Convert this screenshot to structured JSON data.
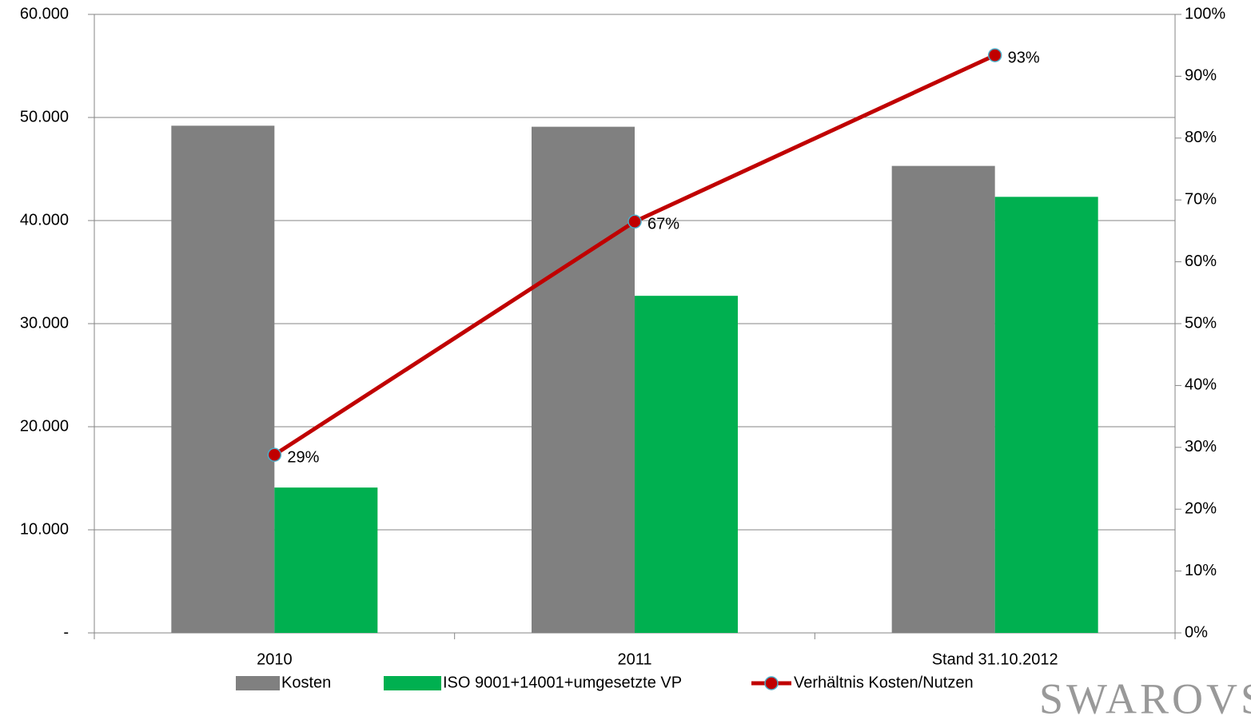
{
  "chart_data": {
    "type": "bar-line",
    "categories": [
      "2010",
      "2011",
      "Stand 31.10.2012"
    ],
    "series": [
      {
        "name": "Kosten",
        "color": "#808080",
        "values": [
          49200,
          49100,
          45300
        ]
      },
      {
        "name": "ISO 9001+14001+umgesetzte VP",
        "color": "#00b050",
        "values": [
          14100,
          32700,
          42300
        ]
      },
      {
        "name": "Verhältnis Kosten/Nutzen",
        "color": "#c00000",
        "axis": "y2",
        "values": [
          28.8,
          66.5,
          93.4
        ],
        "value_labels": [
          "29%",
          "67%",
          "93%"
        ]
      }
    ],
    "ylim": [
      0,
      60000
    ],
    "yticks": [
      {
        "value": 0,
        "label": "-"
      },
      {
        "value": 10000,
        "label": "10.000"
      },
      {
        "value": 20000,
        "label": "20.000"
      },
      {
        "value": 30000,
        "label": "30.000"
      },
      {
        "value": 40000,
        "label": "40.000"
      },
      {
        "value": 50000,
        "label": "50.000"
      },
      {
        "value": 60000,
        "label": "60.000"
      }
    ],
    "y2lim": [
      0,
      100
    ],
    "y2ticks": [
      {
        "value": 0,
        "label": "0%"
      },
      {
        "value": 10,
        "label": "10%"
      },
      {
        "value": 20,
        "label": "20%"
      },
      {
        "value": 30,
        "label": "30%"
      },
      {
        "value": 40,
        "label": "40%"
      },
      {
        "value": 50,
        "label": "50%"
      },
      {
        "value": 60,
        "label": "60%"
      },
      {
        "value": 70,
        "label": "70%"
      },
      {
        "value": 80,
        "label": "80%"
      },
      {
        "value": 90,
        "label": "90%"
      },
      {
        "value": 100,
        "label": "100%"
      }
    ],
    "grid": true,
    "legend": "bottom",
    "logo": "SWAROVS"
  }
}
